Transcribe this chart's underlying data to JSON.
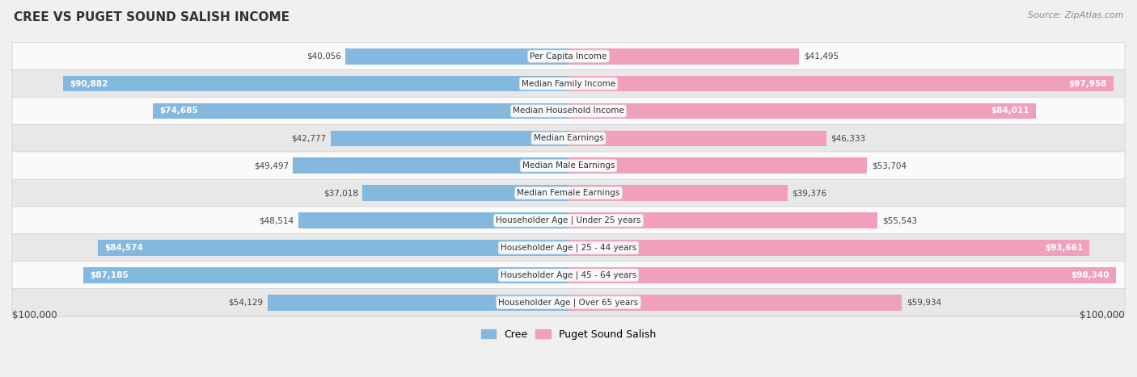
{
  "title": "CREE VS PUGET SOUND SALISH INCOME",
  "source": "Source: ZipAtlas.com",
  "max_value": 100000,
  "categories": [
    "Per Capita Income",
    "Median Family Income",
    "Median Household Income",
    "Median Earnings",
    "Median Male Earnings",
    "Median Female Earnings",
    "Householder Age | Under 25 years",
    "Householder Age | 25 - 44 years",
    "Householder Age | 45 - 64 years",
    "Householder Age | Over 65 years"
  ],
  "cree_values": [
    40056,
    90882,
    74685,
    42777,
    49497,
    37018,
    48514,
    84574,
    87185,
    54129
  ],
  "salish_values": [
    41495,
    97958,
    84011,
    46333,
    53704,
    39376,
    55543,
    93661,
    98340,
    59934
  ],
  "cree_labels": [
    "$40,056",
    "$90,882",
    "$74,685",
    "$42,777",
    "$49,497",
    "$37,018",
    "$48,514",
    "$84,574",
    "$87,185",
    "$54,129"
  ],
  "salish_labels": [
    "$41,495",
    "$97,958",
    "$84,011",
    "$46,333",
    "$53,704",
    "$39,376",
    "$55,543",
    "$93,661",
    "$98,340",
    "$59,934"
  ],
  "cree_color": "#85b8de",
  "salish_color": "#f0a0bc",
  "bar_height": 0.58,
  "background_color": "#f0f0f0",
  "row_colors": [
    "#fafafa",
    "#e8e8e8"
  ],
  "label_inside_threshold": 65000,
  "xlabel_left": "$100,000",
  "xlabel_right": "$100,000",
  "legend_cree": "Cree",
  "legend_salish": "Puget Sound Salish"
}
